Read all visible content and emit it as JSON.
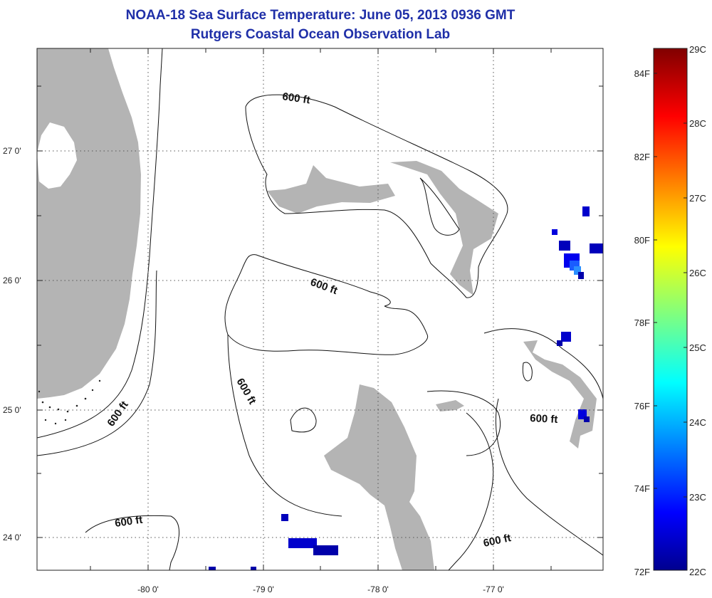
{
  "title": {
    "line1": "NOAA-18 Sea Surface Temperature:  June 05, 2013 0936 GMT",
    "line2": "Rutgers Coastal Ocean Observation Lab"
  },
  "map": {
    "lon_labels": [
      "-80 0'",
      "-79 0'",
      "-78 0'",
      "-77 0'"
    ],
    "lat_labels": [
      "27 0'",
      "26 0'",
      "25 0'",
      "24 0'"
    ],
    "contour_label": "600 ft",
    "land_color": "#b4b4b4",
    "ocean_color": "#ffffff",
    "grid": "dotted"
  },
  "colorbar": {
    "celsius": [
      "29C",
      "28C",
      "27C",
      "26C",
      "25C",
      "24C",
      "23C",
      "22C"
    ],
    "fahrenheit": [
      "84F",
      "82F",
      "80F",
      "78F",
      "76F",
      "74F",
      "72F"
    ],
    "colormap": "jet",
    "range_c": [
      22,
      29
    ]
  }
}
